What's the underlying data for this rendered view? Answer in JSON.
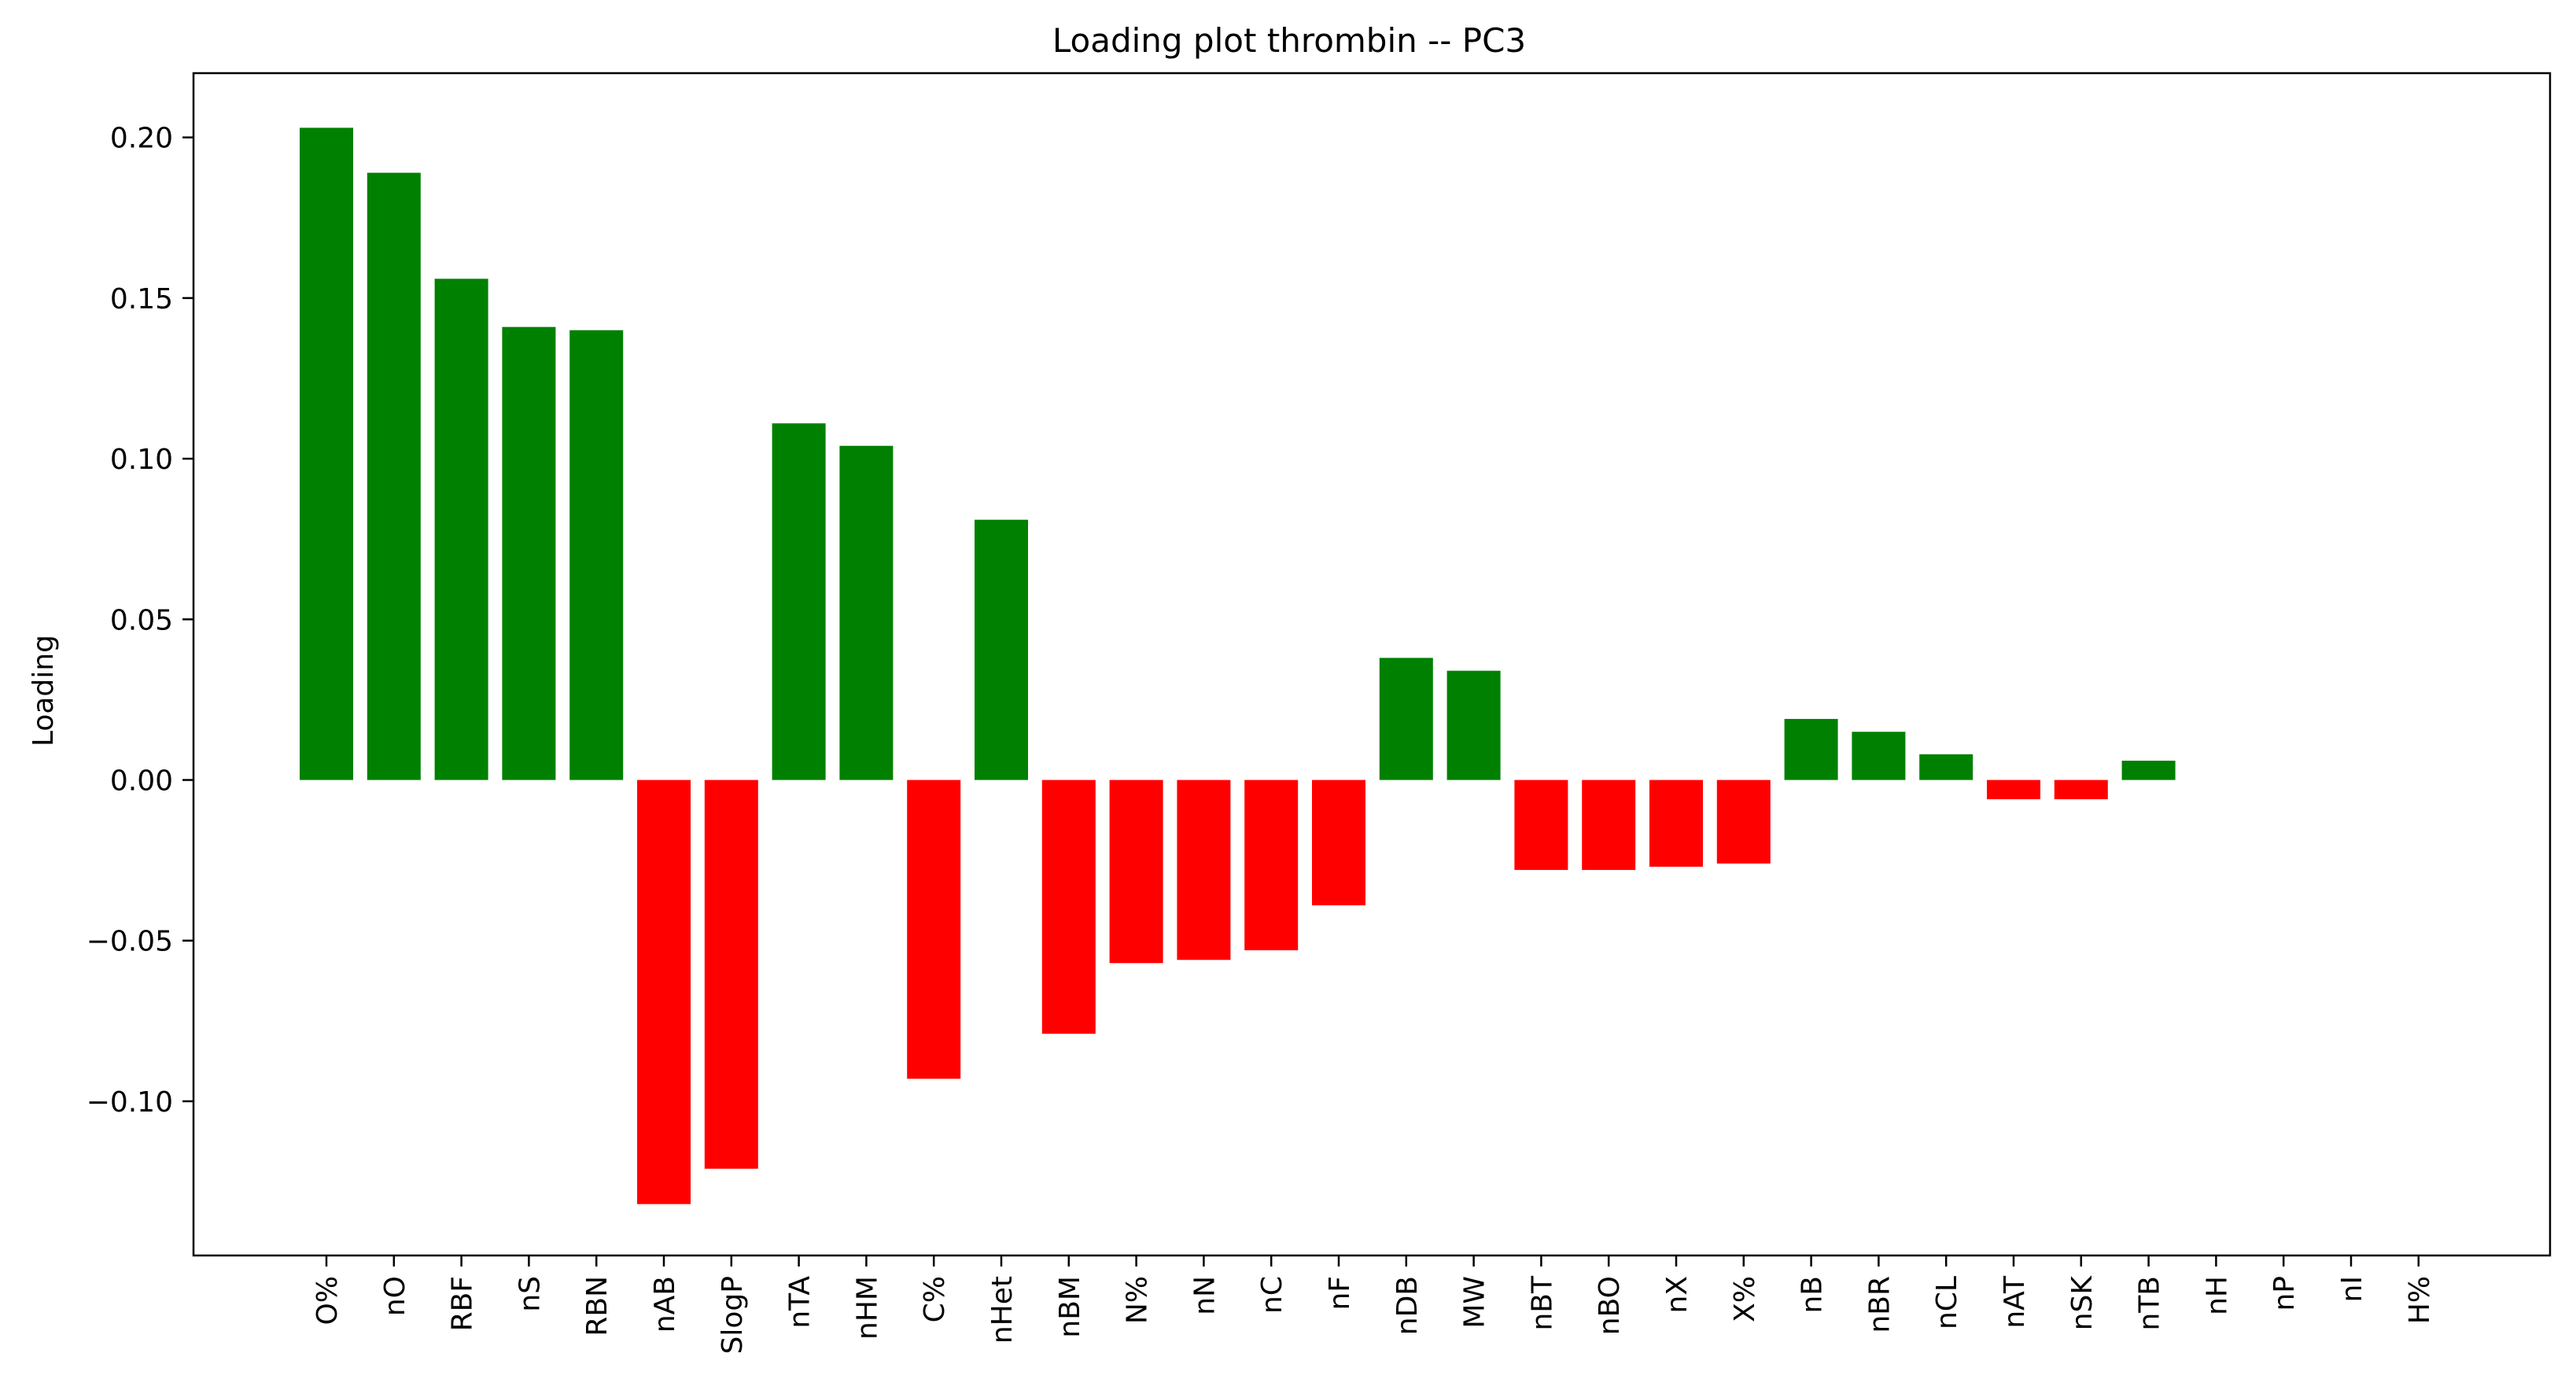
{
  "chart_data": {
    "type": "bar",
    "title": "Loading plot thrombin -- PC3",
    "xlabel": "",
    "ylabel": "Loading",
    "ylim": [
      -0.148,
      0.22
    ],
    "yticks": [
      -0.1,
      -0.05,
      0.0,
      0.05,
      0.1,
      0.15,
      0.2
    ],
    "ytick_labels": [
      "−0.10",
      "−0.05",
      "0.00",
      "0.05",
      "0.10",
      "0.15",
      "0.20"
    ],
    "grid": false,
    "legend": "none",
    "colors": {
      "positive": "#008000",
      "negative": "#ff0000"
    },
    "categories": [
      "O%",
      "nO",
      "RBF",
      "nS",
      "RBN",
      "nAB",
      "SlogP",
      "nTA",
      "nHM",
      "C%",
      "nHet",
      "nBM",
      "N%",
      "nN",
      "nC",
      "nF",
      "nDB",
      "MW",
      "nBT",
      "nBO",
      "nX",
      "X%",
      "nB",
      "nBR",
      "nCL",
      "nAT",
      "nSK",
      "nTB",
      "nH",
      "nP",
      "nI",
      "H%"
    ],
    "values": [
      0.203,
      0.189,
      0.156,
      0.141,
      0.14,
      -0.132,
      -0.121,
      0.111,
      0.104,
      -0.093,
      0.081,
      -0.079,
      -0.057,
      -0.056,
      -0.053,
      -0.039,
      0.038,
      0.034,
      -0.028,
      -0.028,
      -0.027,
      -0.026,
      0.019,
      0.015,
      0.008,
      -0.006,
      -0.006,
      0.006,
      0.0,
      0.0,
      0.0,
      0.0
    ]
  }
}
